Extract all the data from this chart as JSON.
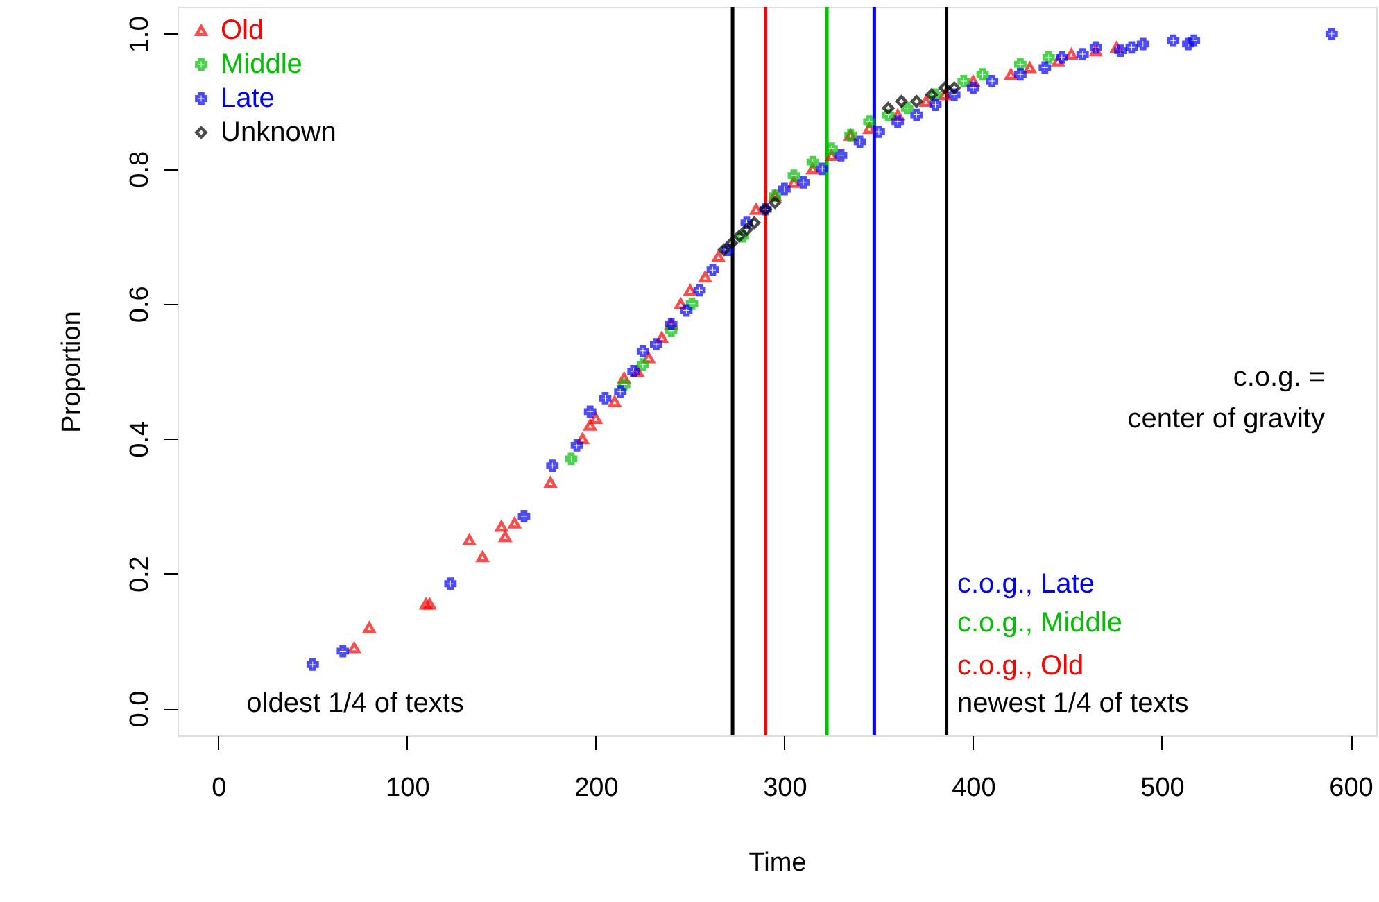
{
  "chart_data": {
    "type": "scatter",
    "xlabel": "Time",
    "ylabel": "Proportion",
    "xlim": [
      -21.6,
      613.6
    ],
    "ylim": [
      -0.04,
      1.04
    ],
    "xticks": [
      0,
      100,
      200,
      300,
      400,
      500,
      600
    ],
    "yticks": [
      {
        "value": 0,
        "label": "0.0"
      },
      {
        "value": 0.2,
        "label": "0.2"
      },
      {
        "value": 0.4,
        "label": "0.4"
      },
      {
        "value": 0.6,
        "label": "0.6"
      },
      {
        "value": 0.8,
        "label": "0.8"
      },
      {
        "value": 1,
        "label": "1.0"
      }
    ],
    "grid": false,
    "legend": "top left",
    "series": [
      {
        "name": "Old",
        "color": "#ff0000",
        "marker": "triangle",
        "x": [
          72,
          80,
          110,
          112,
          133,
          140,
          150,
          152,
          157,
          176,
          193,
          197,
          200,
          210,
          215,
          222,
          228,
          235,
          240,
          245,
          250,
          258,
          265,
          285,
          295,
          305,
          315,
          325,
          335,
          345,
          360,
          375,
          385,
          400,
          420,
          430,
          445,
          452,
          465,
          476
        ],
        "values": [
          0.09,
          0.12,
          0.155,
          0.155,
          0.25,
          0.225,
          0.27,
          0.255,
          0.275,
          0.335,
          0.4,
          0.42,
          0.43,
          0.455,
          0.49,
          0.5,
          0.52,
          0.55,
          0.57,
          0.6,
          0.62,
          0.64,
          0.67,
          0.74,
          0.76,
          0.78,
          0.8,
          0.82,
          0.85,
          0.86,
          0.88,
          0.9,
          0.91,
          0.93,
          0.94,
          0.95,
          0.96,
          0.97,
          0.975,
          0.98
        ]
      },
      {
        "name": "Middle",
        "color": "#00c000",
        "marker": "cross",
        "x": [
          187,
          215,
          225,
          240,
          251,
          278,
          295,
          305,
          315,
          325,
          335,
          345,
          355,
          365,
          380,
          395,
          405,
          425,
          440
        ],
        "values": [
          0.37,
          0.48,
          0.51,
          0.56,
          0.6,
          0.7,
          0.76,
          0.79,
          0.81,
          0.83,
          0.85,
          0.87,
          0.88,
          0.89,
          0.91,
          0.93,
          0.94,
          0.955,
          0.965
        ]
      },
      {
        "name": "Late",
        "color": "#0000ff",
        "marker": "cross",
        "x": [
          50,
          66,
          123,
          162,
          177,
          190,
          197,
          205,
          213,
          220,
          225,
          232,
          240,
          248,
          255,
          262,
          270,
          280,
          290,
          300,
          310,
          320,
          330,
          340,
          350,
          360,
          370,
          380,
          390,
          400,
          410,
          425,
          438,
          447,
          458,
          465,
          478,
          484,
          490,
          506,
          514,
          517,
          590
        ],
        "values": [
          0.065,
          0.085,
          0.185,
          0.285,
          0.36,
          0.39,
          0.44,
          0.46,
          0.47,
          0.5,
          0.53,
          0.54,
          0.57,
          0.59,
          0.62,
          0.65,
          0.68,
          0.72,
          0.74,
          0.77,
          0.78,
          0.8,
          0.82,
          0.84,
          0.855,
          0.87,
          0.88,
          0.895,
          0.91,
          0.92,
          0.93,
          0.94,
          0.95,
          0.965,
          0.97,
          0.98,
          0.975,
          0.98,
          0.985,
          0.99,
          0.985,
          0.99,
          1.0
        ]
      },
      {
        "name": "Unknown",
        "color": "#000000",
        "marker": "diamond",
        "x": [
          268,
          272,
          276,
          280,
          284,
          290,
          295,
          355,
          362,
          370,
          378,
          385,
          390
        ],
        "values": [
          0.68,
          0.69,
          0.7,
          0.71,
          0.72,
          0.74,
          0.75,
          0.89,
          0.9,
          0.9,
          0.91,
          0.92,
          0.92
        ]
      }
    ],
    "ref_lines": [
      {
        "axis": "x",
        "value": 272.5,
        "label": "oldest 1/4 of texts",
        "color": "#000000"
      },
      {
        "axis": "x",
        "value": 290,
        "label": "c.o.g., Old",
        "color": "#ff0000"
      },
      {
        "axis": "x",
        "value": 322.5,
        "label": "c.o.g., Middle",
        "color": "#00c000"
      },
      {
        "axis": "x",
        "value": 347.6,
        "label": "c.o.g., Late",
        "color": "#0000ff"
      },
      {
        "axis": "x",
        "value": 385.9,
        "label": "newest 1/4 of texts",
        "color": "#000000"
      }
    ],
    "annotations": [
      "c.o.g. =\ncenter of gravity"
    ]
  }
}
